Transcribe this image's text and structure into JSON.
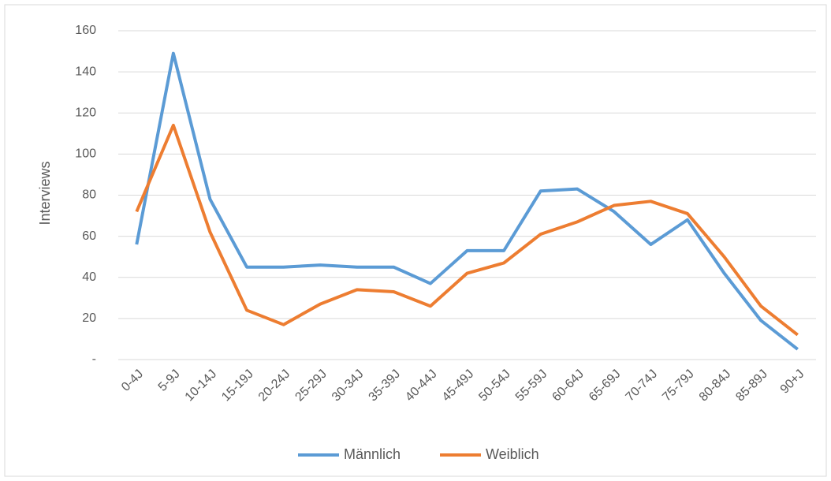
{
  "chart_data": {
    "type": "line",
    "y_label": "Interviews",
    "categories": [
      "0-4J",
      "5-9J",
      "10-14J",
      "15-19J",
      "20-24J",
      "25-29J",
      "30-34J",
      "35-39J",
      "40-44J",
      "45-49J",
      "50-54J",
      "55-59J",
      "60-64J",
      "65-69J",
      "70-74J",
      "75-79J",
      "80-84J",
      "85-89J",
      "90+J"
    ],
    "series": [
      {
        "name": "Männlich",
        "color": "#5b9bd5",
        "values": [
          56,
          149,
          78,
          45,
          45,
          46,
          45,
          45,
          37,
          53,
          53,
          82,
          83,
          72,
          56,
          68,
          42,
          19,
          5
        ]
      },
      {
        "name": "Weiblich",
        "color": "#ed7d31",
        "values": [
          72,
          114,
          62,
          24,
          17,
          27,
          34,
          33,
          26,
          42,
          47,
          61,
          67,
          75,
          77,
          71,
          50,
          26,
          12
        ]
      }
    ],
    "ylim": [
      0,
      160
    ],
    "yticks": [
      {
        "value": 0,
        "label": "-"
      },
      20,
      40,
      60,
      80,
      100,
      120,
      140,
      160
    ],
    "grid": true,
    "legend": "bottom"
  }
}
